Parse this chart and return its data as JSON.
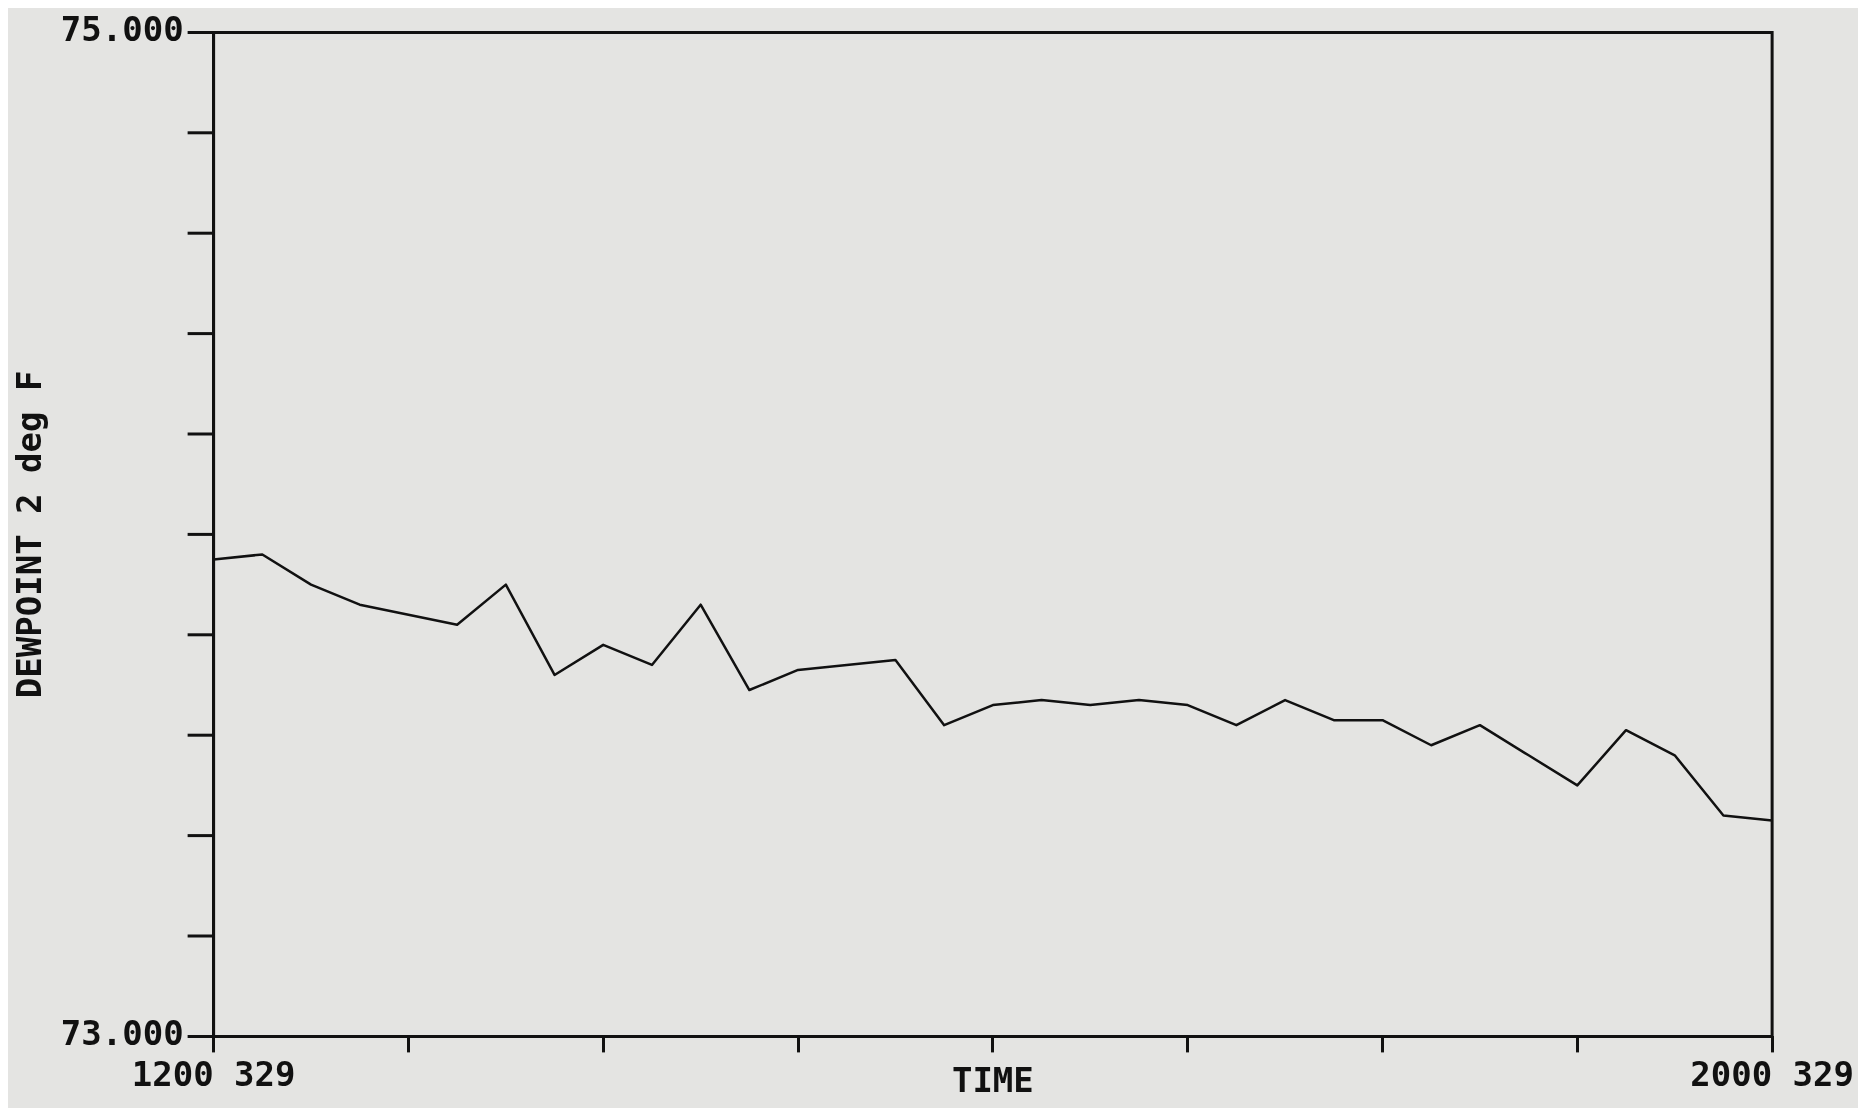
{
  "chart_data": {
    "type": "line",
    "xlabel": "TIME",
    "ylabel": "DEWPOINT 2 deg F",
    "categories": [
      "1200 329",
      null,
      null,
      null,
      null,
      null,
      null,
      null,
      null,
      null,
      null,
      null,
      null,
      null,
      null,
      null,
      null,
      null,
      null,
      null,
      null,
      null,
      null,
      null,
      null,
      null,
      null,
      null,
      null,
      null,
      null,
      null,
      "2000 329"
    ],
    "series": [
      {
        "color": "#111111",
        "values": [
          73.95,
          73.96,
          73.9,
          73.86,
          73.84,
          73.82,
          73.9,
          73.72,
          73.78,
          73.74,
          73.86,
          73.69,
          73.73,
          73.74,
          73.75,
          73.62,
          73.66,
          73.67,
          73.66,
          73.67,
          73.66,
          73.62,
          73.67,
          73.63,
          73.63,
          73.58,
          73.62,
          73.56,
          73.5,
          73.61,
          73.56,
          73.44,
          73.43
        ]
      }
    ],
    "ylim": [
      73,
      75
    ],
    "yticks": [
      {
        "value": 73,
        "label": "73.000"
      },
      {
        "value": 75,
        "label": "75.000"
      }
    ],
    "marker": "none",
    "line_style": "solid"
  }
}
